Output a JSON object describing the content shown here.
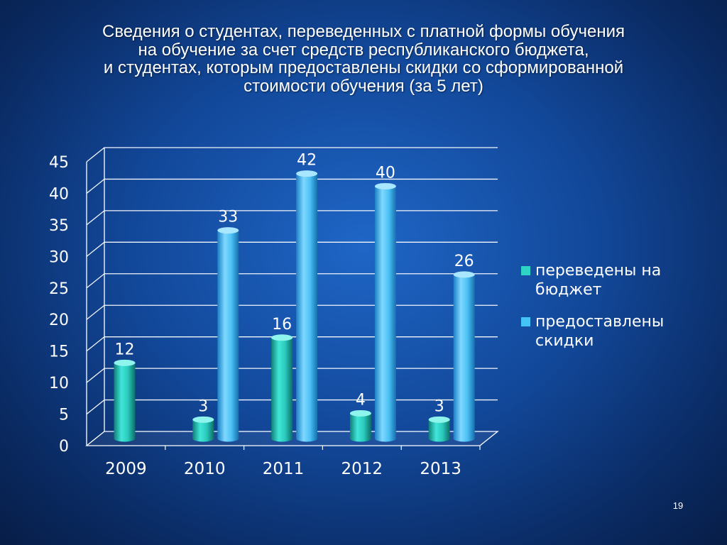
{
  "slide": {
    "title_lines": [
      "Сведения о студентах, переведенных с  платной формы обучения",
      "на обучение за счет средств республиканского бюджета,",
      "и студентах, которым предоставлены скидки со сформированной",
      "стоимости обучения (за 5 лет)"
    ],
    "page_number": "19"
  },
  "chart_data": {
    "type": "bar",
    "categories": [
      "2009",
      "2010",
      "2011",
      "2012",
      "2013"
    ],
    "series": [
      {
        "name": "переведены на бюджет",
        "values": [
          12,
          3,
          16,
          4,
          3
        ],
        "color": "#2ed3c6"
      },
      {
        "name": "предоставлены скидки",
        "values": [
          null,
          33,
          42,
          40,
          26
        ],
        "color": "#45c3f6"
      }
    ],
    "ylim": [
      0,
      45
    ],
    "yticks": [
      "0",
      "5",
      "10",
      "15",
      "20",
      "25",
      "30",
      "35",
      "40",
      "45"
    ],
    "grid": true,
    "legend_position": "right",
    "data_labels": true
  }
}
